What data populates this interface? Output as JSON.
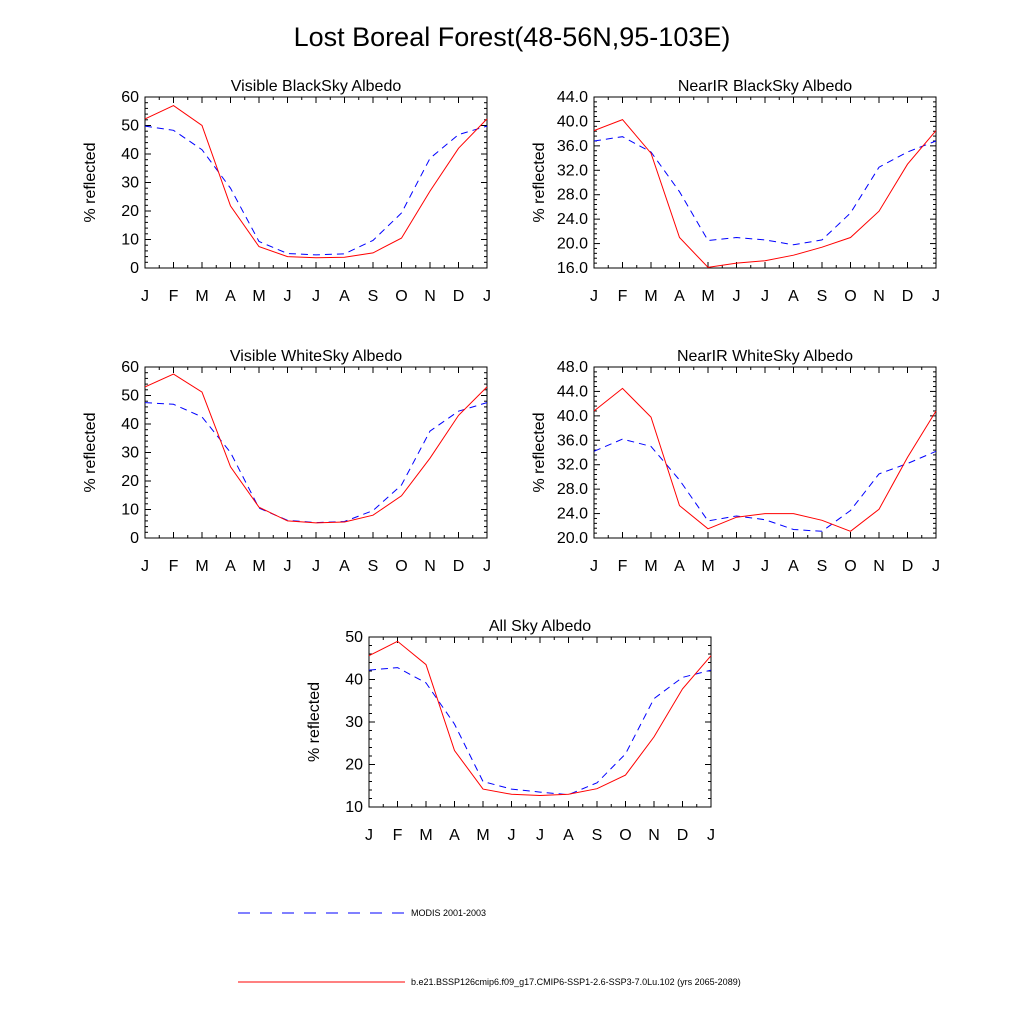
{
  "page_title": "Lost Boreal Forest(48-56N,95-103E)",
  "colors": {
    "modis": "#0000ff",
    "model": "#ff0000",
    "axes": "#000000"
  },
  "legend": {
    "modis_label": "MODIS 2001-2003",
    "model_label": "b.e21.BSSP126cmip6.f09_g17.CMIP6-SSP1-2.6-SSP3-7.0Lu.102 (yrs 2065-2089)"
  },
  "chart_data": [
    {
      "type": "line",
      "title": "Visible BlackSky Albedo",
      "xlabel": "",
      "ylabel": "% reflected",
      "categories": [
        "J",
        "F",
        "M",
        "A",
        "M",
        "J",
        "J",
        "A",
        "S",
        "O",
        "N",
        "D",
        "J"
      ],
      "ylim": [
        0,
        60
      ],
      "yticks": [
        0,
        10,
        20,
        30,
        40,
        50,
        60
      ],
      "ytick_labels": [
        "0",
        "10",
        "20",
        "30",
        "40",
        "50",
        "60"
      ],
      "series": [
        {
          "name": "MODIS 2001-2003",
          "style": "dashed",
          "color": "#0000ff",
          "values": [
            49.8,
            48.3,
            41.5,
            28.0,
            9.3,
            5.1,
            4.6,
            5.0,
            9.7,
            19.3,
            38.5,
            46.8,
            49.8
          ]
        },
        {
          "name": "b.e21.BSSP126cmip6.f09_g17.CMIP6-SSP1-2.6-SSP3-7.0Lu.102 (yrs 2065-2089)",
          "style": "solid",
          "color": "#ff0000",
          "values": [
            52.3,
            57.0,
            50.0,
            21.8,
            7.5,
            4.0,
            3.6,
            3.8,
            5.3,
            10.5,
            27.0,
            42.0,
            52.3
          ]
        }
      ]
    },
    {
      "type": "line",
      "title": "NearIR BlackSky Albedo",
      "xlabel": "",
      "ylabel": "% reflected",
      "categories": [
        "J",
        "F",
        "M",
        "A",
        "M",
        "J",
        "J",
        "A",
        "S",
        "O",
        "N",
        "D",
        "J"
      ],
      "ylim": [
        16,
        44
      ],
      "yticks": [
        16,
        20,
        24,
        28,
        32,
        36,
        40,
        44
      ],
      "ytick_labels": [
        "16.0",
        "20.0",
        "24.0",
        "28.0",
        "32.0",
        "36.0",
        "40.0",
        "44.0"
      ],
      "series": [
        {
          "name": "MODIS 2001-2003",
          "style": "dashed",
          "color": "#0000ff",
          "values": [
            36.8,
            37.5,
            35.0,
            28.5,
            20.5,
            21.0,
            20.6,
            19.8,
            20.6,
            25.0,
            32.5,
            35.0,
            36.8
          ]
        },
        {
          "name": "b.e21.BSSP126cmip6.f09_g17.CMIP6-SSP1-2.6-SSP3-7.0Lu.102 (yrs 2065-2089)",
          "style": "solid",
          "color": "#ff0000",
          "values": [
            38.5,
            40.3,
            34.8,
            21.0,
            16.1,
            16.8,
            17.2,
            18.1,
            19.4,
            21.0,
            25.3,
            33.0,
            38.5
          ]
        }
      ]
    },
    {
      "type": "line",
      "title": "Visible WhiteSky Albedo",
      "xlabel": "",
      "ylabel": "% reflected",
      "categories": [
        "J",
        "F",
        "M",
        "A",
        "M",
        "J",
        "J",
        "A",
        "S",
        "O",
        "N",
        "D",
        "J"
      ],
      "ylim": [
        0,
        60
      ],
      "yticks": [
        0,
        10,
        20,
        30,
        40,
        50,
        60
      ],
      "ytick_labels": [
        "0",
        "10",
        "20",
        "30",
        "40",
        "50",
        "60"
      ],
      "series": [
        {
          "name": "MODIS 2001-2003",
          "style": "dashed",
          "color": "#0000ff",
          "values": [
            47.5,
            46.9,
            42.5,
            30.0,
            10.5,
            6.2,
            5.4,
            5.8,
            9.6,
            18.6,
            37.5,
            44.5,
            47.5
          ]
        },
        {
          "name": "b.e21.BSSP126cmip6.f09_g17.CMIP6-SSP1-2.6-SSP3-7.0Lu.102 (yrs 2065-2089)",
          "style": "solid",
          "color": "#ff0000",
          "values": [
            53.0,
            57.5,
            51.2,
            25.0,
            10.8,
            6.0,
            5.3,
            5.6,
            8.0,
            14.8,
            28.0,
            43.0,
            53.0
          ]
        }
      ]
    },
    {
      "type": "line",
      "title": "NearIR WhiteSky Albedo",
      "xlabel": "",
      "ylabel": "% reflected",
      "categories": [
        "J",
        "F",
        "M",
        "A",
        "M",
        "J",
        "J",
        "A",
        "S",
        "O",
        "N",
        "D",
        "J"
      ],
      "ylim": [
        20,
        48
      ],
      "yticks": [
        20,
        24,
        28,
        32,
        36,
        40,
        44,
        48
      ],
      "ytick_labels": [
        "20.0",
        "24.0",
        "28.0",
        "32.0",
        "36.0",
        "40.0",
        "44.0",
        "48.0"
      ],
      "series": [
        {
          "name": "MODIS 2001-2003",
          "style": "dashed",
          "color": "#0000ff",
          "values": [
            34.2,
            36.2,
            35.0,
            29.5,
            22.8,
            23.6,
            23.0,
            21.4,
            21.1,
            24.5,
            30.5,
            32.2,
            34.2
          ]
        },
        {
          "name": "b.e21.BSSP126cmip6.f09_g17.CMIP6-SSP1-2.6-SSP3-7.0Lu.102 (yrs 2065-2089)",
          "style": "solid",
          "color": "#ff0000",
          "values": [
            40.8,
            44.5,
            39.8,
            25.3,
            21.5,
            23.4,
            24.0,
            24.0,
            22.9,
            21.1,
            24.7,
            33.2,
            40.8
          ]
        }
      ]
    },
    {
      "type": "line",
      "title": "All Sky Albedo",
      "xlabel": "",
      "ylabel": "% reflected",
      "categories": [
        "J",
        "F",
        "M",
        "A",
        "M",
        "J",
        "J",
        "A",
        "S",
        "O",
        "N",
        "D",
        "J"
      ],
      "ylim": [
        10,
        50
      ],
      "yticks": [
        10,
        20,
        30,
        40,
        50
      ],
      "ytick_labels": [
        "10",
        "20",
        "30",
        "40",
        "50"
      ],
      "series": [
        {
          "name": "MODIS 2001-2003",
          "style": "dashed",
          "color": "#0000ff",
          "values": [
            42.2,
            42.8,
            39.2,
            29.5,
            16.0,
            14.2,
            13.5,
            12.9,
            15.7,
            22.5,
            35.5,
            40.5,
            42.2
          ]
        },
        {
          "name": "b.e21.BSSP126cmip6.f09_g17.CMIP6-SSP1-2.6-SSP3-7.0Lu.102 (yrs 2065-2089)",
          "style": "solid",
          "color": "#ff0000",
          "values": [
            45.6,
            49.0,
            43.5,
            23.3,
            14.2,
            13.0,
            12.7,
            13.0,
            14.3,
            17.5,
            26.5,
            37.8,
            45.6
          ]
        }
      ]
    }
  ]
}
